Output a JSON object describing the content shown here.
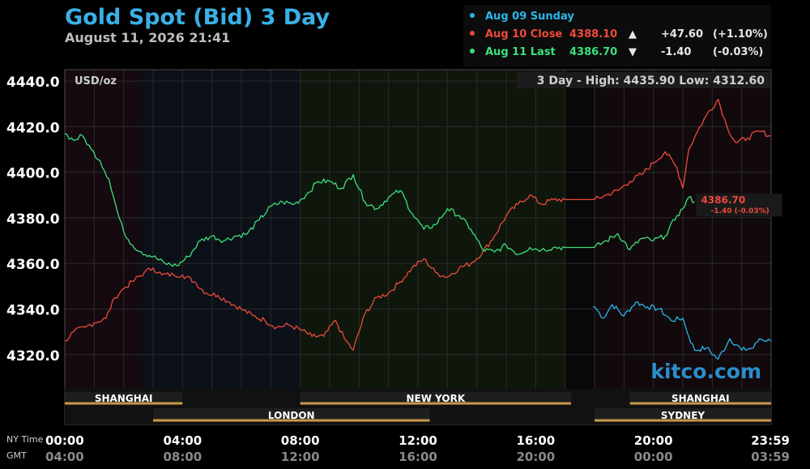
{
  "header": {
    "title": "Gold Spot (Bid) 3 Day",
    "subtitle": "August 11, 2026 21:41"
  },
  "legend": [
    {
      "label": "Aug 09 Sunday",
      "price": "",
      "arrow": "",
      "change": "",
      "pct": "",
      "color": "#29b6e8"
    },
    {
      "label": "Aug 10 Close",
      "price": "4388.10",
      "arrow": "▲",
      "change": "+47.60",
      "pct": "(+1.10%)",
      "color": "#ee4a3a"
    },
    {
      "label": "Aug 11 Last",
      "price": "4386.70",
      "arrow": "▼",
      "change": "-1.40",
      "pct": "(-0.03%)",
      "color": "#3de07a"
    }
  ],
  "chart_data": {
    "type": "line",
    "unit_label": "USD/oz",
    "stats_text": "3 Day - High: 4435.90  Low: 4312.60",
    "ylim": [
      4305,
      4445
    ],
    "yticks": [
      "4440.0",
      "4420.0",
      "4400.0",
      "4380.0",
      "4360.0",
      "4340.0",
      "4320.0"
    ],
    "xrow1_label": "NY Time",
    "xrow2_label": "GMT",
    "xticks_ny": [
      "00:00",
      "04:00",
      "08:00",
      "12:00",
      "16:00",
      "20:00",
      "23:59"
    ],
    "xticks_gmt": [
      "04:00",
      "08:00",
      "12:00",
      "16:00",
      "20:00",
      "00:00",
      "03:59"
    ],
    "sessions_top": [
      "SHANGHAI",
      "NEW YORK",
      "SHANGHAI"
    ],
    "sessions_bottom": [
      "LONDON",
      "SYDNEY"
    ],
    "last_label_price": "4386.70",
    "last_label_change": "-1.40 (-0.03%)",
    "watermark": "kitco.com",
    "series": [
      {
        "name": "Aug 09 Sunday",
        "color": "#29b6e8",
        "x": [
          17.95,
          18.0,
          18.3,
          18.6,
          19.0,
          19.4,
          19.8,
          20.2,
          20.6,
          21.0,
          21.2,
          21.4,
          21.8,
          22.2,
          22.6,
          23.0,
          23.4,
          23.6,
          23.99
        ],
        "y": [
          4341,
          4341,
          4336,
          4342,
          4337,
          4343,
          4341,
          4340,
          4335,
          4336,
          4328,
          4322,
          4323,
          4318,
          4327,
          4322,
          4323,
          4327,
          4326
        ]
      },
      {
        "name": "Aug 10 Close",
        "color": "#ee4a3a",
        "x": [
          0,
          0.3,
          0.7,
          1.0,
          1.4,
          1.7,
          2.0,
          2.3,
          2.7,
          3.0,
          3.3,
          3.7,
          4.0,
          4.4,
          4.8,
          5.2,
          5.6,
          6.0,
          6.4,
          6.8,
          7.2,
          7.6,
          8.0,
          8.4,
          8.8,
          9.2,
          9.5,
          9.8,
          10.2,
          10.6,
          11.0,
          11.4,
          11.8,
          12.2,
          12.6,
          13.0,
          13.4,
          13.8,
          14.2,
          14.6,
          15.0,
          15.4,
          15.8,
          16.2,
          16.6,
          17.0,
          17.5,
          18.0,
          18.4,
          18.8,
          19.2,
          19.6,
          20.0,
          20.4,
          20.8,
          21.0,
          21.2,
          21.5,
          21.8,
          22.2,
          22.5,
          22.8,
          23.2,
          23.6,
          23.99
        ],
        "y": [
          4326,
          4330,
          4332,
          4334,
          4336,
          4345,
          4349,
          4352,
          4356,
          4358,
          4355,
          4355,
          4355,
          4352,
          4347,
          4346,
          4343,
          4340,
          4337,
          4335,
          4332,
          4333,
          4331,
          4328,
          4328,
          4335,
          4327,
          4322,
          4338,
          4345,
          4347,
          4352,
          4358,
          4362,
          4356,
          4354,
          4358,
          4360,
          4365,
          4372,
          4381,
          4386,
          4390,
          4386,
          4388,
          4388,
          4388,
          4388,
          4390,
          4392,
          4396,
          4399,
          4404,
          4409,
          4402,
          4393,
          4410,
          4418,
          4425,
          4432,
          4420,
          4413,
          4415,
          4418,
          4416
        ]
      },
      {
        "name": "Aug 11 Last",
        "color": "#3de07a",
        "x": [
          0,
          0.3,
          0.6,
          0.9,
          1.2,
          1.5,
          1.8,
          2.0,
          2.3,
          2.6,
          3.0,
          3.4,
          3.8,
          4.2,
          4.6,
          5.0,
          5.4,
          5.8,
          6.2,
          6.6,
          7.0,
          7.4,
          7.8,
          8.2,
          8.6,
          9.0,
          9.4,
          9.8,
          10.2,
          10.6,
          11.0,
          11.4,
          11.8,
          12.2,
          12.6,
          13.0,
          13.4,
          13.8,
          14.2,
          14.6,
          15.0,
          15.4,
          15.8,
          16.2,
          16.6,
          17.0,
          17.5,
          18.0,
          18.4,
          18.8,
          19.2,
          19.6,
          20.0,
          20.4,
          20.8,
          21.0,
          21.2,
          21.4
        ],
        "y": [
          4417,
          4414,
          4416,
          4410,
          4405,
          4397,
          4382,
          4374,
          4368,
          4365,
          4363,
          4360,
          4359,
          4363,
          4370,
          4372,
          4370,
          4372,
          4373,
          4379,
          4385,
          4387,
          4386,
          4390,
          4396,
          4396,
          4393,
          4399,
          4387,
          4384,
          4389,
          4392,
          4382,
          4375,
          4377,
          4384,
          4381,
          4375,
          4366,
          4365,
          4368,
          4364,
          4367,
          4366,
          4367,
          4367,
          4367,
          4367,
          4370,
          4373,
          4366,
          4371,
          4370,
          4372,
          4381,
          4384,
          4389,
          4387
        ]
      }
    ]
  }
}
